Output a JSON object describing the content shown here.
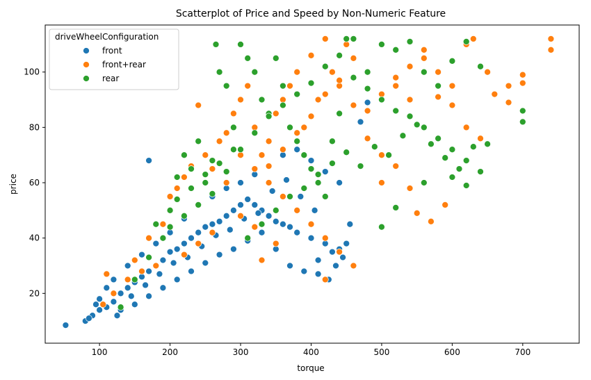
{
  "chart_data": {
    "type": "scatter",
    "title": "Scatterplot of Price and Speed by Non-Numeric Feature",
    "xlabel": "torque",
    "ylabel": "price",
    "xlim": [
      23,
      780
    ],
    "ylim": [
      2,
      117
    ],
    "xticks": [
      "100",
      "200",
      "300",
      "400",
      "500",
      "600",
      "700"
    ],
    "yticks": [
      "20",
      "40",
      "60",
      "80",
      "100"
    ],
    "grid": false,
    "legend": {
      "title": "driveWheelConfiguration",
      "placement": "top-left",
      "entries": [
        "front",
        "front+rear",
        "rear"
      ]
    },
    "colors": {
      "front": "#1f77b4",
      "front+rear": "#ff7f0e",
      "rear": "#2ca02c"
    },
    "series": [
      {
        "name": "front",
        "color": "#1f77b4",
        "points": [
          [
            52,
            8.5
          ],
          [
            80,
            10
          ],
          [
            90,
            12
          ],
          [
            100,
            14
          ],
          [
            110,
            15
          ],
          [
            120,
            17
          ],
          [
            130,
            20
          ],
          [
            140,
            22
          ],
          [
            150,
            24
          ],
          [
            160,
            26
          ],
          [
            170,
            28
          ],
          [
            180,
            30
          ],
          [
            190,
            32
          ],
          [
            200,
            35
          ],
          [
            210,
            36
          ],
          [
            220,
            38
          ],
          [
            230,
            40
          ],
          [
            240,
            42
          ],
          [
            250,
            44
          ],
          [
            260,
            45
          ],
          [
            270,
            46
          ],
          [
            280,
            48
          ],
          [
            290,
            50
          ],
          [
            300,
            52
          ],
          [
            310,
            54
          ],
          [
            320,
            52
          ],
          [
            330,
            50
          ],
          [
            340,
            48
          ],
          [
            350,
            46
          ],
          [
            360,
            45
          ],
          [
            370,
            44
          ],
          [
            380,
            42
          ],
          [
            400,
            40
          ],
          [
            420,
            38
          ],
          [
            440,
            36
          ],
          [
            100,
            18
          ],
          [
            120,
            25
          ],
          [
            140,
            30
          ],
          [
            160,
            34
          ],
          [
            180,
            38
          ],
          [
            200,
            42
          ],
          [
            220,
            47
          ],
          [
            240,
            52
          ],
          [
            260,
            55
          ],
          [
            280,
            58
          ],
          [
            300,
            60
          ],
          [
            320,
            63
          ],
          [
            340,
            66
          ],
          [
            360,
            70
          ],
          [
            380,
            72
          ],
          [
            400,
            68
          ],
          [
            420,
            64
          ],
          [
            440,
            60
          ],
          [
            130,
            14
          ],
          [
            150,
            16
          ],
          [
            170,
            19
          ],
          [
            190,
            22
          ],
          [
            210,
            25
          ],
          [
            230,
            28
          ],
          [
            250,
            31
          ],
          [
            270,
            34
          ],
          [
            290,
            36
          ],
          [
            310,
            39
          ],
          [
            330,
            42
          ],
          [
            350,
            36
          ],
          [
            370,
            30
          ],
          [
            390,
            28
          ],
          [
            410,
            32
          ],
          [
            430,
            35
          ],
          [
            450,
            38
          ],
          [
            480,
            89
          ],
          [
            170,
            68
          ],
          [
            110,
            22
          ],
          [
            95,
            16
          ],
          [
            85,
            11
          ],
          [
            125,
            12
          ],
          [
            145,
            19
          ],
          [
            165,
            23
          ],
          [
            185,
            27
          ],
          [
            205,
            31
          ],
          [
            225,
            33
          ],
          [
            245,
            37
          ],
          [
            265,
            41
          ],
          [
            285,
            43
          ],
          [
            305,
            47
          ],
          [
            325,
            49
          ],
          [
            345,
            57
          ],
          [
            365,
            61
          ],
          [
            385,
            55
          ],
          [
            405,
            50
          ],
          [
            425,
            25
          ],
          [
            435,
            30
          ],
          [
            445,
            33
          ],
          [
            455,
            45
          ],
          [
            470,
            82
          ],
          [
            410,
            27
          ]
        ]
      },
      {
        "name": "front+rear",
        "color": "#ff7f0e",
        "points": [
          [
            105,
            16
          ],
          [
            110,
            27
          ],
          [
            150,
            32
          ],
          [
            170,
            40
          ],
          [
            190,
            45
          ],
          [
            200,
            55
          ],
          [
            210,
            58
          ],
          [
            220,
            62
          ],
          [
            230,
            66
          ],
          [
            240,
            88
          ],
          [
            250,
            70
          ],
          [
            260,
            65
          ],
          [
            270,
            75
          ],
          [
            280,
            78
          ],
          [
            290,
            85
          ],
          [
            300,
            90
          ],
          [
            310,
            95
          ],
          [
            320,
            80
          ],
          [
            330,
            70
          ],
          [
            340,
            75
          ],
          [
            350,
            85
          ],
          [
            360,
            90
          ],
          [
            370,
            95
          ],
          [
            380,
            100
          ],
          [
            390,
            80
          ],
          [
            400,
            106
          ],
          [
            410,
            90
          ],
          [
            420,
            112
          ],
          [
            430,
            100
          ],
          [
            440,
            95
          ],
          [
            450,
            110
          ],
          [
            460,
            105
          ],
          [
            480,
            100
          ],
          [
            500,
            110
          ],
          [
            520,
            95
          ],
          [
            540,
            90
          ],
          [
            560,
            105
          ],
          [
            580,
            100
          ],
          [
            600,
            95
          ],
          [
            620,
            110
          ],
          [
            630,
            112
          ],
          [
            650,
            100
          ],
          [
            680,
            95
          ],
          [
            700,
            99
          ],
          [
            740,
            112
          ],
          [
            740,
            108
          ],
          [
            500,
            60
          ],
          [
            550,
            49
          ],
          [
            570,
            46
          ],
          [
            590,
            52
          ],
          [
            300,
            70
          ],
          [
            320,
            65
          ],
          [
            340,
            60
          ],
          [
            360,
            55
          ],
          [
            380,
            50
          ],
          [
            400,
            45
          ],
          [
            420,
            40
          ],
          [
            440,
            35
          ],
          [
            460,
            30
          ],
          [
            420,
            25
          ],
          [
            350,
            38
          ],
          [
            330,
            32
          ],
          [
            260,
            42
          ],
          [
            240,
            38
          ],
          [
            220,
            34
          ],
          [
            180,
            30
          ],
          [
            160,
            28
          ],
          [
            140,
            25
          ],
          [
            120,
            20
          ],
          [
            280,
            60
          ],
          [
            300,
            48
          ],
          [
            320,
            44
          ],
          [
            340,
            66
          ],
          [
            360,
            72
          ],
          [
            380,
            78
          ],
          [
            400,
            84
          ],
          [
            420,
            92
          ],
          [
            440,
            97
          ],
          [
            460,
            88
          ],
          [
            480,
            86
          ],
          [
            500,
            92
          ],
          [
            520,
            98
          ],
          [
            540,
            102
          ],
          [
            560,
            108
          ],
          [
            580,
            91
          ],
          [
            600,
            88
          ],
          [
            620,
            80
          ],
          [
            640,
            76
          ],
          [
            660,
            92
          ],
          [
            680,
            89
          ],
          [
            700,
            96
          ],
          [
            480,
            76
          ],
          [
            500,
            70
          ],
          [
            520,
            66
          ],
          [
            540,
            58
          ]
        ]
      },
      {
        "name": "rear",
        "color": "#2ca02c",
        "points": [
          [
            130,
            15
          ],
          [
            150,
            25
          ],
          [
            170,
            33
          ],
          [
            190,
            40
          ],
          [
            200,
            50
          ],
          [
            210,
            62
          ],
          [
            220,
            70
          ],
          [
            230,
            65
          ],
          [
            240,
            75
          ],
          [
            250,
            60
          ],
          [
            260,
            68
          ],
          [
            265,
            110
          ],
          [
            270,
            100
          ],
          [
            280,
            95
          ],
          [
            290,
            80
          ],
          [
            300,
            110
          ],
          [
            310,
            105
          ],
          [
            320,
            100
          ],
          [
            330,
            90
          ],
          [
            340,
            85
          ],
          [
            350,
            105
          ],
          [
            360,
            95
          ],
          [
            370,
            80
          ],
          [
            380,
            75
          ],
          [
            390,
            70
          ],
          [
            400,
            65
          ],
          [
            410,
            60
          ],
          [
            420,
            55
          ],
          [
            430,
            75
          ],
          [
            440,
            85
          ],
          [
            450,
            112
          ],
          [
            460,
            112
          ],
          [
            480,
            100
          ],
          [
            500,
            110
          ],
          [
            520,
            108
          ],
          [
            540,
            111
          ],
          [
            560,
            100
          ],
          [
            580,
            95
          ],
          [
            600,
            104
          ],
          [
            620,
            111
          ],
          [
            640,
            102
          ],
          [
            650,
            74
          ],
          [
            700,
            82
          ],
          [
            700,
            86
          ],
          [
            620,
            59
          ],
          [
            500,
            44
          ],
          [
            520,
            51
          ],
          [
            560,
            60
          ],
          [
            600,
            62
          ],
          [
            180,
            45
          ],
          [
            200,
            44
          ],
          [
            220,
            48
          ],
          [
            240,
            52
          ],
          [
            260,
            56
          ],
          [
            280,
            64
          ],
          [
            300,
            72
          ],
          [
            320,
            78
          ],
          [
            340,
            84
          ],
          [
            360,
            88
          ],
          [
            380,
            92
          ],
          [
            400,
            96
          ],
          [
            420,
            102
          ],
          [
            440,
            106
          ],
          [
            460,
            98
          ],
          [
            480,
            94
          ],
          [
            500,
            90
          ],
          [
            520,
            86
          ],
          [
            540,
            84
          ],
          [
            560,
            80
          ],
          [
            580,
            76
          ],
          [
            600,
            72
          ],
          [
            620,
            68
          ],
          [
            640,
            64
          ],
          [
            310,
            40
          ],
          [
            330,
            45
          ],
          [
            350,
            50
          ],
          [
            370,
            55
          ],
          [
            390,
            58
          ],
          [
            410,
            63
          ],
          [
            430,
            67
          ],
          [
            450,
            71
          ],
          [
            470,
            66
          ],
          [
            490,
            73
          ],
          [
            510,
            70
          ],
          [
            530,
            77
          ],
          [
            550,
            81
          ],
          [
            570,
            74
          ],
          [
            590,
            69
          ],
          [
            610,
            65
          ],
          [
            630,
            73
          ],
          [
            210,
            54
          ],
          [
            230,
            58
          ],
          [
            250,
            63
          ],
          [
            270,
            67
          ],
          [
            290,
            72
          ]
        ]
      }
    ]
  }
}
